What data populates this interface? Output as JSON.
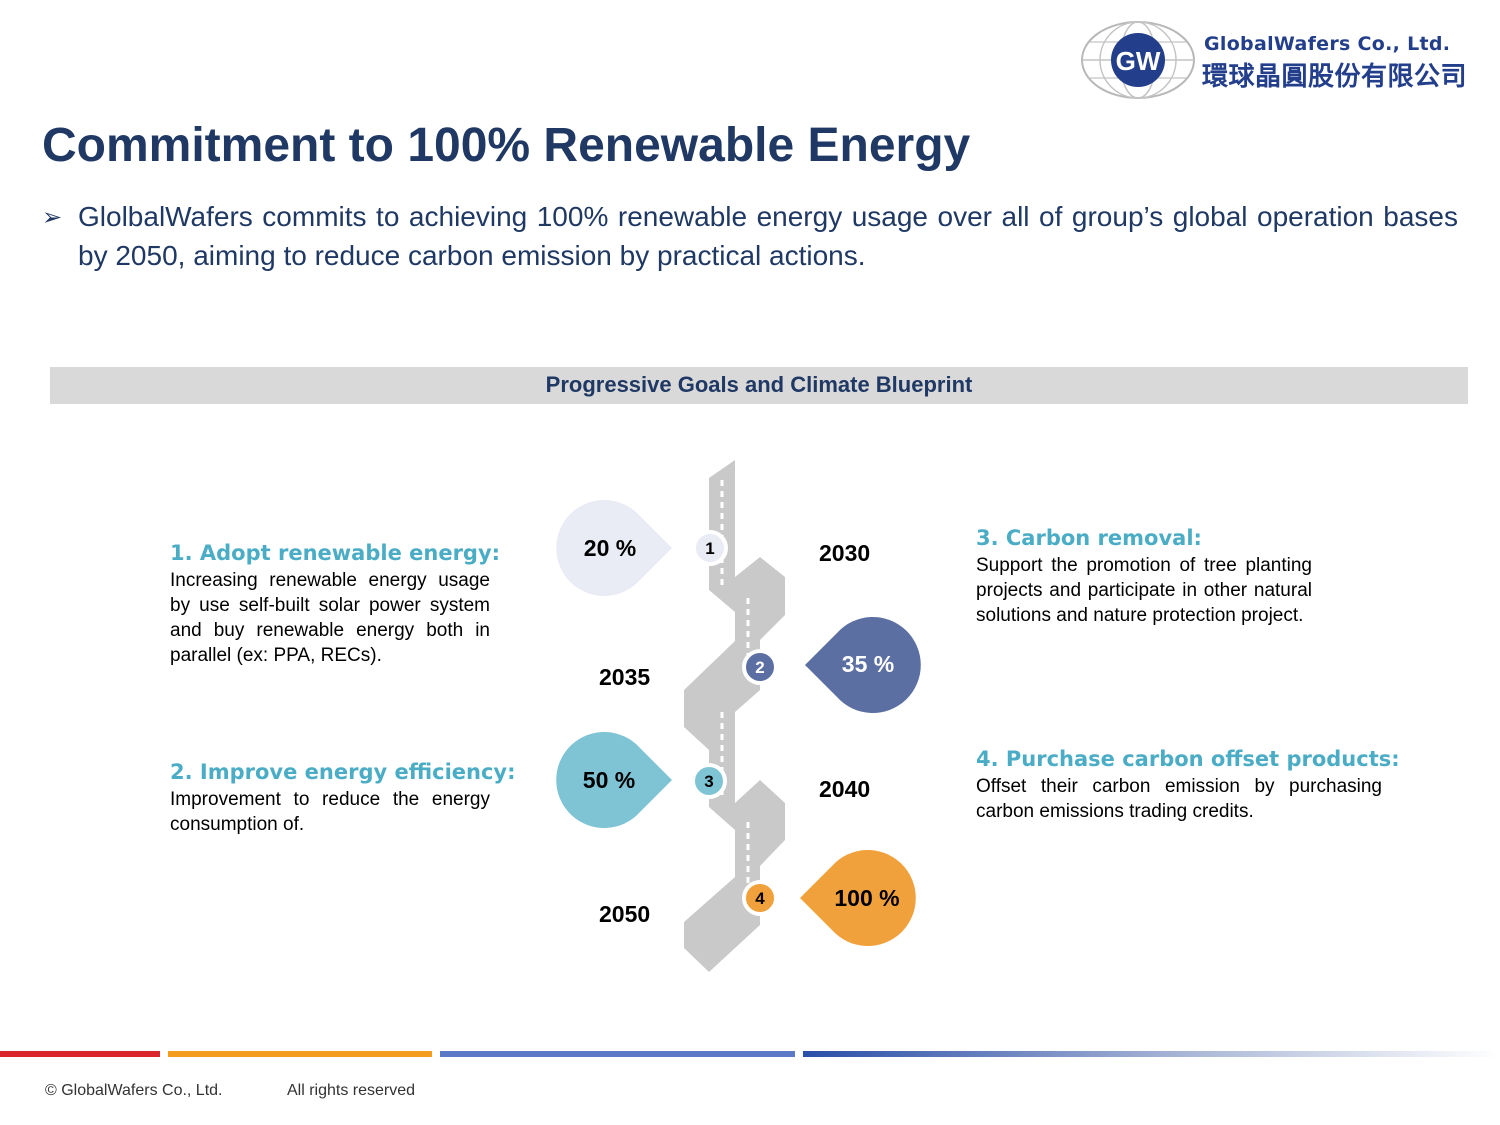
{
  "logo": {
    "mark": "GW",
    "name_en": "GlobalWafers Co., Ltd.",
    "name_zh": "環球晶圓股份有限公司"
  },
  "title": "Commitment to 100% Renewable Energy",
  "bullet": "GlolbalWafers commits to achieving 100% renewable energy usage over all of group’s global operation bases by 2050, aiming to reduce carbon emission by practical actions.",
  "section_header": "Progressive Goals and Climate Blueprint",
  "goals": [
    {
      "title": "1. Adopt renewable energy:",
      "body": "Increasing renewable energy usage by use self-built solar power system and buy renewable energy both in parallel (ex: PPA, RECs)."
    },
    {
      "title": "2. Improve energy efficiency:",
      "body": "Improvement to reduce the energy consumption of."
    },
    {
      "title": "3. Carbon removal:",
      "body": "Support the promotion of tree planting projects and participate in other natural solutions and nature protection project."
    },
    {
      "title": "4. Purchase carbon offset products:",
      "body": "Offset their carbon emission by purchasing carbon emissions trading credits."
    }
  ],
  "milestones": [
    {
      "step": "1",
      "percent": "20 %",
      "year": "2030",
      "color": "#e9ebf5",
      "text_color": "#000000"
    },
    {
      "step": "2",
      "percent": "35 %",
      "year": "2035",
      "color": "#5c6fa3",
      "text_color": "#ffffff"
    },
    {
      "step": "3",
      "percent": "50 %",
      "year": "2040",
      "color": "#7ec4d4",
      "text_color": "#000000"
    },
    {
      "step": "4",
      "percent": "100 %",
      "year": "2050",
      "color": "#f0a13c",
      "text_color": "#000000"
    }
  ],
  "footer": {
    "copyright": "© GlobalWafers Co., Ltd.",
    "rights": "All rights reserved"
  },
  "colors": {
    "title": "#1f3864",
    "goal_heading": "#4bacc6",
    "footer_red": "#d9262c",
    "footer_orange": "#f39c1e",
    "footer_blue": "#5b79c4"
  }
}
